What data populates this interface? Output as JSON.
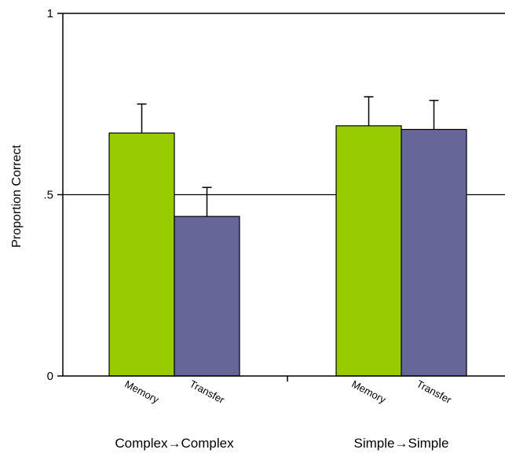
{
  "chart_data": {
    "type": "bar",
    "title": "",
    "xlabel": "",
    "ylabel": "Proportion Correct",
    "ylim": [
      0,
      1
    ],
    "yticks": [
      {
        "value": 0,
        "label": "0"
      },
      {
        "value": 0.5,
        "label": ".5"
      },
      {
        "value": 1,
        "label": "1"
      }
    ],
    "grid": "horizontal line at .5",
    "legend": "none",
    "groups": [
      {
        "label": "Complex→Complex",
        "bars": [
          {
            "label": "Memory",
            "value": 0.67,
            "error": 0.08
          },
          {
            "label": "Transfer",
            "value": 0.44,
            "error": 0.08
          }
        ]
      },
      {
        "label": "Simple→Simple",
        "bars": [
          {
            "label": "Memory",
            "value": 0.69,
            "error": 0.08
          },
          {
            "label": "Transfer",
            "value": 0.68,
            "error": 0.08
          }
        ]
      }
    ],
    "colors": {
      "Memory": "#99cc00",
      "Transfer": "#666699"
    }
  }
}
